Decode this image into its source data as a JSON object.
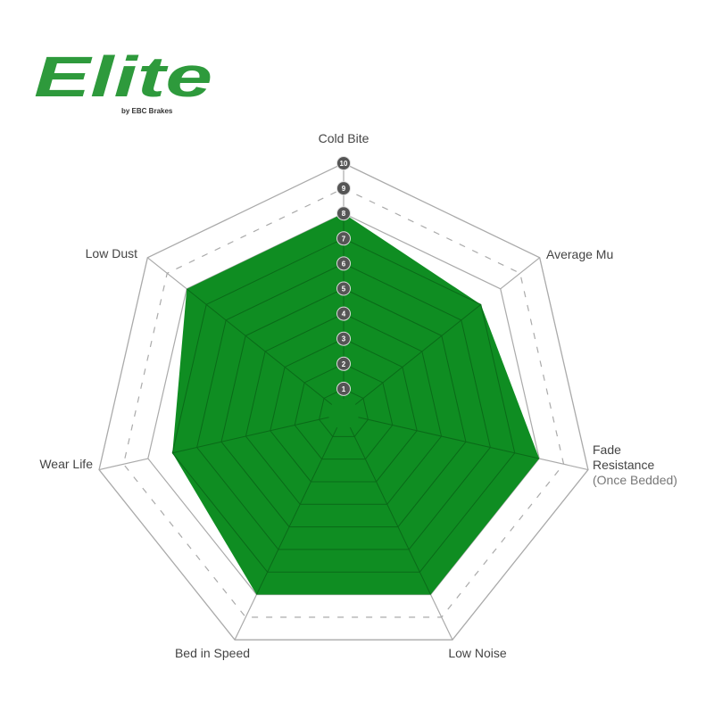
{
  "logo": {
    "text": "Elite",
    "byline": "by EBC Brakes",
    "color": "#2e9a3c"
  },
  "chart_data": {
    "type": "radar",
    "axes": [
      "Cold Bite",
      "Average Mu",
      "Fade Resistance",
      "Low Noise",
      "Bed in Speed",
      "Wear Life",
      "Low Dust"
    ],
    "axis_label_extra": {
      "Fade Resistance": "(Once Bedded)"
    },
    "values": [
      8,
      7,
      8,
      8,
      8,
      7,
      8
    ],
    "range": [
      0,
      10
    ],
    "tick_labels": [
      "1",
      "2",
      "3",
      "4",
      "5",
      "6",
      "7",
      "8",
      "9",
      "10"
    ],
    "fill_color": "#0f8d22",
    "grid_color": "#aaaaaa"
  }
}
